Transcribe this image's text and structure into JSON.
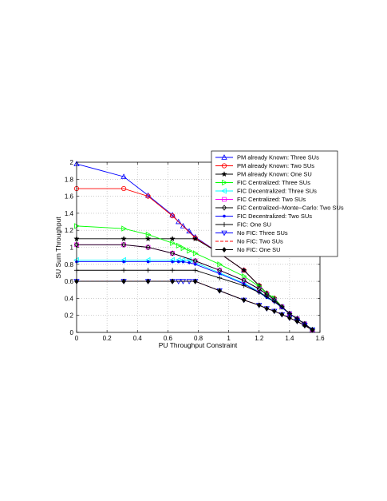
{
  "chart_data": {
    "type": "line",
    "xlabel": "PU Throughput Constraint",
    "ylabel": "SU Sum Throughput",
    "xlim": [
      0,
      1.6
    ],
    "ylim": [
      0,
      2
    ],
    "xticks": [
      "0",
      "0.2",
      "0.4",
      "0.6",
      "0.8",
      "1",
      "1.2",
      "1.4",
      "1.6"
    ],
    "yticks": [
      "0",
      "0.2",
      "0.4",
      "0.6",
      "0.8",
      "1",
      "1.2",
      "1.4",
      "1.6",
      "1.8",
      "2"
    ],
    "grid": true,
    "legend_position": "top-right",
    "series": [
      {
        "name": "PM already Known: Three SUs",
        "color": "#0000ff",
        "marker": "triangle-up",
        "dash": false,
        "x": [
          0,
          0.31,
          0.47,
          0.63,
          0.67,
          0.7,
          0.74,
          0.78,
          0.94,
          1.1,
          1.2,
          1.25,
          1.3,
          1.35,
          1.4,
          1.45,
          1.5,
          1.55
        ],
        "y": [
          1.98,
          1.83,
          1.61,
          1.38,
          1.3,
          1.25,
          1.19,
          1.12,
          0.93,
          0.73,
          0.55,
          0.46,
          0.4,
          0.3,
          0.22,
          0.16,
          0.1,
          0.03
        ]
      },
      {
        "name": "PM already Known: Two SUs",
        "color": "#ff0000",
        "marker": "circle",
        "dash": false,
        "x": [
          0,
          0.31,
          0.47,
          0.63,
          0.78,
          0.94,
          1.1,
          1.2,
          1.25,
          1.3,
          1.35,
          1.4,
          1.45,
          1.5,
          1.55
        ],
        "y": [
          1.69,
          1.69,
          1.6,
          1.37,
          1.11,
          0.93,
          0.73,
          0.55,
          0.46,
          0.4,
          0.3,
          0.22,
          0.16,
          0.1,
          0.03
        ]
      },
      {
        "name": "PM already Known: One SU",
        "color": "#000000",
        "marker": "star",
        "dash": false,
        "x": [
          0,
          0.31,
          0.47,
          0.63,
          0.78,
          0.94,
          1.1,
          1.2,
          1.25,
          1.3,
          1.35,
          1.4,
          1.45,
          1.5,
          1.55
        ],
        "y": [
          1.1,
          1.1,
          1.1,
          1.1,
          1.1,
          0.93,
          0.73,
          0.55,
          0.46,
          0.4,
          0.3,
          0.22,
          0.16,
          0.1,
          0.03
        ]
      },
      {
        "name": "FIC Centralized: Three SUs",
        "color": "#00ff00",
        "marker": "triangle-right",
        "dash": false,
        "x": [
          0,
          0.31,
          0.47,
          0.63,
          0.67,
          0.7,
          0.74,
          0.78,
          0.94,
          1.1,
          1.2,
          1.25,
          1.3,
          1.35,
          1.4,
          1.45,
          1.5,
          1.55
        ],
        "y": [
          1.25,
          1.22,
          1.15,
          1.05,
          1.02,
          0.99,
          0.96,
          0.93,
          0.8,
          0.66,
          0.54,
          0.46,
          0.4,
          0.3,
          0.22,
          0.16,
          0.1,
          0.03
        ]
      },
      {
        "name": "FIC Decentralized: Three SUs",
        "color": "#00ffff",
        "marker": "triangle-left",
        "dash": false,
        "x": [
          0,
          0.31,
          0.47,
          0.63,
          0.67,
          0.7,
          0.74,
          0.78,
          0.94,
          1.1,
          1.2,
          1.25,
          1.3,
          1.35,
          1.4,
          1.45,
          1.5,
          1.55
        ],
        "y": [
          0.85,
          0.85,
          0.85,
          0.85,
          0.85,
          0.85,
          0.85,
          0.82,
          0.7,
          0.58,
          0.48,
          0.42,
          0.37,
          0.3,
          0.22,
          0.16,
          0.1,
          0.03
        ]
      },
      {
        "name": "FIC Centralized: Two SUs",
        "color": "#ff00ff",
        "marker": "square",
        "dash": false,
        "x": [
          0,
          0.31,
          0.47,
          0.63,
          0.78,
          0.94,
          1.1,
          1.2,
          1.25,
          1.3,
          1.35,
          1.4,
          1.45,
          1.5,
          1.55
        ],
        "y": [
          1.03,
          1.03,
          1.0,
          0.93,
          0.84,
          0.73,
          0.61,
          0.51,
          0.45,
          0.38,
          0.3,
          0.22,
          0.16,
          0.1,
          0.03
        ]
      },
      {
        "name": "FIC Centralized−Monte−Carlo: Two SUs",
        "color": "#000000",
        "marker": "diamond",
        "dash": false,
        "x": [
          0,
          0.31,
          0.47,
          0.63,
          0.78,
          0.94,
          1.1,
          1.2,
          1.25,
          1.3,
          1.35,
          1.4,
          1.45,
          1.5,
          1.55
        ],
        "y": [
          1.03,
          1.03,
          1.0,
          0.93,
          0.84,
          0.73,
          0.61,
          0.51,
          0.45,
          0.38,
          0.3,
          0.22,
          0.16,
          0.1,
          0.03
        ]
      },
      {
        "name": "FIC Decentralized: Two SUs",
        "color": "#0000ff",
        "marker": "dot",
        "dash": false,
        "x": [
          0,
          0.31,
          0.47,
          0.63,
          0.67,
          0.7,
          0.74,
          0.78,
          0.94,
          1.1,
          1.2,
          1.25,
          1.3,
          1.35,
          1.4,
          1.45,
          1.5,
          1.55
        ],
        "y": [
          0.83,
          0.83,
          0.83,
          0.83,
          0.83,
          0.83,
          0.82,
          0.8,
          0.69,
          0.57,
          0.47,
          0.41,
          0.36,
          0.29,
          0.22,
          0.16,
          0.1,
          0.03
        ]
      },
      {
        "name": "FIC: One SU",
        "color": "#000000",
        "marker": "plus",
        "dash": false,
        "x": [
          0,
          0.31,
          0.47,
          0.63,
          0.78,
          0.94,
          1.1,
          1.2,
          1.25,
          1.3,
          1.35,
          1.4,
          1.45,
          1.5,
          1.55
        ],
        "y": [
          0.73,
          0.73,
          0.73,
          0.73,
          0.73,
          0.64,
          0.55,
          0.47,
          0.42,
          0.36,
          0.3,
          0.22,
          0.16,
          0.1,
          0.03
        ]
      },
      {
        "name": "No FIC: Three SUs",
        "color": "#0000ff",
        "marker": "triangle-down",
        "dash": false,
        "x": [
          0,
          0.31,
          0.47,
          0.63,
          0.67,
          0.7,
          0.74,
          0.78,
          0.94,
          1.1,
          1.2,
          1.25,
          1.3,
          1.35,
          1.4,
          1.45,
          1.5,
          1.55
        ],
        "y": [
          0.6,
          0.6,
          0.6,
          0.6,
          0.6,
          0.6,
          0.6,
          0.6,
          0.49,
          0.38,
          0.32,
          0.28,
          0.25,
          0.21,
          0.17,
          0.13,
          0.08,
          0.03
        ]
      },
      {
        "name": "No FIC: Two SUs",
        "color": "#ff0000",
        "marker": "none",
        "dash": true,
        "x": [
          0,
          0.31,
          0.47,
          0.63,
          0.78,
          0.94,
          1.1,
          1.2,
          1.25,
          1.3,
          1.35,
          1.4,
          1.45,
          1.5,
          1.55
        ],
        "y": [
          0.6,
          0.6,
          0.6,
          0.6,
          0.6,
          0.49,
          0.38,
          0.32,
          0.28,
          0.25,
          0.21,
          0.17,
          0.13,
          0.08,
          0.03
        ]
      },
      {
        "name": "No FIC: One SU",
        "color": "#000000",
        "marker": "diamond-filled",
        "dash": false,
        "x": [
          0,
          0.31,
          0.47,
          0.63,
          0.78,
          0.94,
          1.1,
          1.2,
          1.25,
          1.3,
          1.35,
          1.4,
          1.45,
          1.5,
          1.55
        ],
        "y": [
          0.6,
          0.6,
          0.6,
          0.6,
          0.6,
          0.49,
          0.38,
          0.32,
          0.28,
          0.25,
          0.21,
          0.17,
          0.13,
          0.08,
          0.03
        ]
      }
    ]
  }
}
